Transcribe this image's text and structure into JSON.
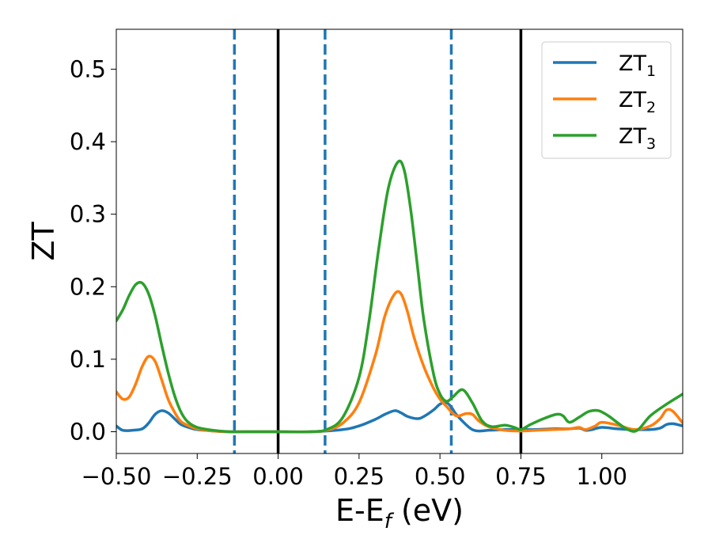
{
  "chart_data": {
    "type": "line",
    "xlabel": "E-E$_f$ (eV)",
    "xlabel_parts": {
      "main": "E-E",
      "sub": "f",
      "tail": " (eV)"
    },
    "ylabel": "ZT",
    "xlim": [
      -0.5,
      1.25
    ],
    "ylim": [
      -0.03,
      0.555
    ],
    "xticks": [
      -0.5,
      -0.25,
      0.0,
      0.25,
      0.5,
      0.75,
      1.0
    ],
    "xtick_labels": [
      "−0.50",
      "−0.25",
      "0.00",
      "0.25",
      "0.50",
      "0.75",
      "1.00"
    ],
    "yticks": [
      0.0,
      0.1,
      0.2,
      0.3,
      0.4,
      0.5
    ],
    "ytick_labels": [
      "0.0",
      "0.1",
      "0.2",
      "0.3",
      "0.4",
      "0.5"
    ],
    "grid": false,
    "legend_position": "top-right",
    "vlines": [
      {
        "x": -0.135,
        "style": "dashed",
        "color": "#1f77b4"
      },
      {
        "x": 0.0,
        "style": "solid",
        "color": "#000000"
      },
      {
        "x": 0.145,
        "style": "dashed",
        "color": "#1f77b4"
      },
      {
        "x": 0.535,
        "style": "dashed",
        "color": "#1f77b4"
      },
      {
        "x": 0.75,
        "style": "solid",
        "color": "#000000"
      }
    ],
    "series": [
      {
        "name": "ZT1",
        "label_main": "ZT",
        "label_sub": "1",
        "color": "#1f77b4",
        "x": [
          -0.5,
          -0.48,
          -0.45,
          -0.42,
          -0.4,
          -0.38,
          -0.36,
          -0.34,
          -0.32,
          -0.3,
          -0.27,
          -0.25,
          -0.2,
          -0.15,
          -0.1,
          0.0,
          0.1,
          0.2,
          0.25,
          0.3,
          0.33,
          0.36,
          0.38,
          0.4,
          0.43,
          0.45,
          0.48,
          0.5,
          0.52,
          0.535,
          0.55,
          0.58,
          0.6,
          0.62,
          0.65,
          0.7,
          0.75,
          0.8,
          0.85,
          0.9,
          0.93,
          0.95,
          0.97,
          1.0,
          1.05,
          1.1,
          1.15,
          1.18,
          1.2,
          1.22,
          1.25
        ],
        "y": [
          0.008,
          0.002,
          0.002,
          0.004,
          0.012,
          0.024,
          0.029,
          0.026,
          0.018,
          0.01,
          0.005,
          0.003,
          0.001,
          0.0,
          0.0,
          0.0,
          0.0,
          0.003,
          0.008,
          0.017,
          0.024,
          0.029,
          0.026,
          0.021,
          0.018,
          0.021,
          0.03,
          0.038,
          0.04,
          0.034,
          0.024,
          0.01,
          0.003,
          0.001,
          0.002,
          0.003,
          0.003,
          0.003,
          0.004,
          0.004,
          0.005,
          0.002,
          0.003,
          0.006,
          0.004,
          0.003,
          0.003,
          0.005,
          0.01,
          0.011,
          0.008
        ]
      },
      {
        "name": "ZT2",
        "label_main": "ZT",
        "label_sub": "2",
        "color": "#ff7f0e",
        "x": [
          -0.5,
          -0.48,
          -0.46,
          -0.44,
          -0.42,
          -0.4,
          -0.38,
          -0.36,
          -0.34,
          -0.32,
          -0.3,
          -0.27,
          -0.25,
          -0.2,
          -0.15,
          -0.1,
          0.0,
          0.1,
          0.15,
          0.2,
          0.25,
          0.3,
          0.33,
          0.36,
          0.38,
          0.4,
          0.42,
          0.45,
          0.48,
          0.5,
          0.52,
          0.55,
          0.58,
          0.6,
          0.62,
          0.65,
          0.7,
          0.75,
          0.8,
          0.85,
          0.9,
          0.93,
          0.95,
          0.98,
          1.0,
          1.05,
          1.1,
          1.15,
          1.18,
          1.2,
          1.22,
          1.25
        ],
        "y": [
          0.055,
          0.045,
          0.048,
          0.066,
          0.09,
          0.104,
          0.097,
          0.072,
          0.045,
          0.027,
          0.014,
          0.007,
          0.004,
          0.001,
          0.0,
          0.0,
          0.0,
          0.0,
          0.002,
          0.012,
          0.04,
          0.105,
          0.16,
          0.19,
          0.19,
          0.165,
          0.13,
          0.09,
          0.06,
          0.045,
          0.035,
          0.022,
          0.025,
          0.024,
          0.015,
          0.007,
          0.002,
          0.001,
          0.002,
          0.003,
          0.004,
          0.006,
          0.003,
          0.008,
          0.013,
          0.009,
          0.003,
          0.008,
          0.018,
          0.03,
          0.028,
          0.012
        ]
      },
      {
        "name": "ZT3",
        "label_main": "ZT",
        "label_sub": "3",
        "color": "#2ca02c",
        "x": [
          -0.5,
          -0.48,
          -0.46,
          -0.44,
          -0.42,
          -0.4,
          -0.38,
          -0.36,
          -0.34,
          -0.32,
          -0.3,
          -0.28,
          -0.25,
          -0.2,
          -0.15,
          -0.1,
          0.0,
          0.1,
          0.15,
          0.2,
          0.25,
          0.28,
          0.31,
          0.34,
          0.37,
          0.39,
          0.41,
          0.43,
          0.45,
          0.48,
          0.5,
          0.52,
          0.54,
          0.57,
          0.6,
          0.63,
          0.66,
          0.7,
          0.73,
          0.75,
          0.78,
          0.82,
          0.86,
          0.88,
          0.9,
          0.93,
          0.96,
          0.99,
          1.02,
          1.05,
          1.08,
          1.11,
          1.15,
          1.2,
          1.25
        ],
        "y": [
          0.153,
          0.168,
          0.188,
          0.203,
          0.205,
          0.19,
          0.16,
          0.12,
          0.082,
          0.05,
          0.027,
          0.014,
          0.006,
          0.002,
          0.0,
          0.0,
          0.0,
          0.0,
          0.003,
          0.02,
          0.075,
          0.15,
          0.25,
          0.335,
          0.372,
          0.36,
          0.305,
          0.23,
          0.155,
          0.08,
          0.052,
          0.042,
          0.048,
          0.058,
          0.04,
          0.015,
          0.007,
          0.009,
          0.006,
          0.003,
          0.01,
          0.018,
          0.024,
          0.022,
          0.013,
          0.02,
          0.028,
          0.029,
          0.022,
          0.012,
          0.003,
          0.002,
          0.022,
          0.038,
          0.052
        ]
      }
    ]
  }
}
